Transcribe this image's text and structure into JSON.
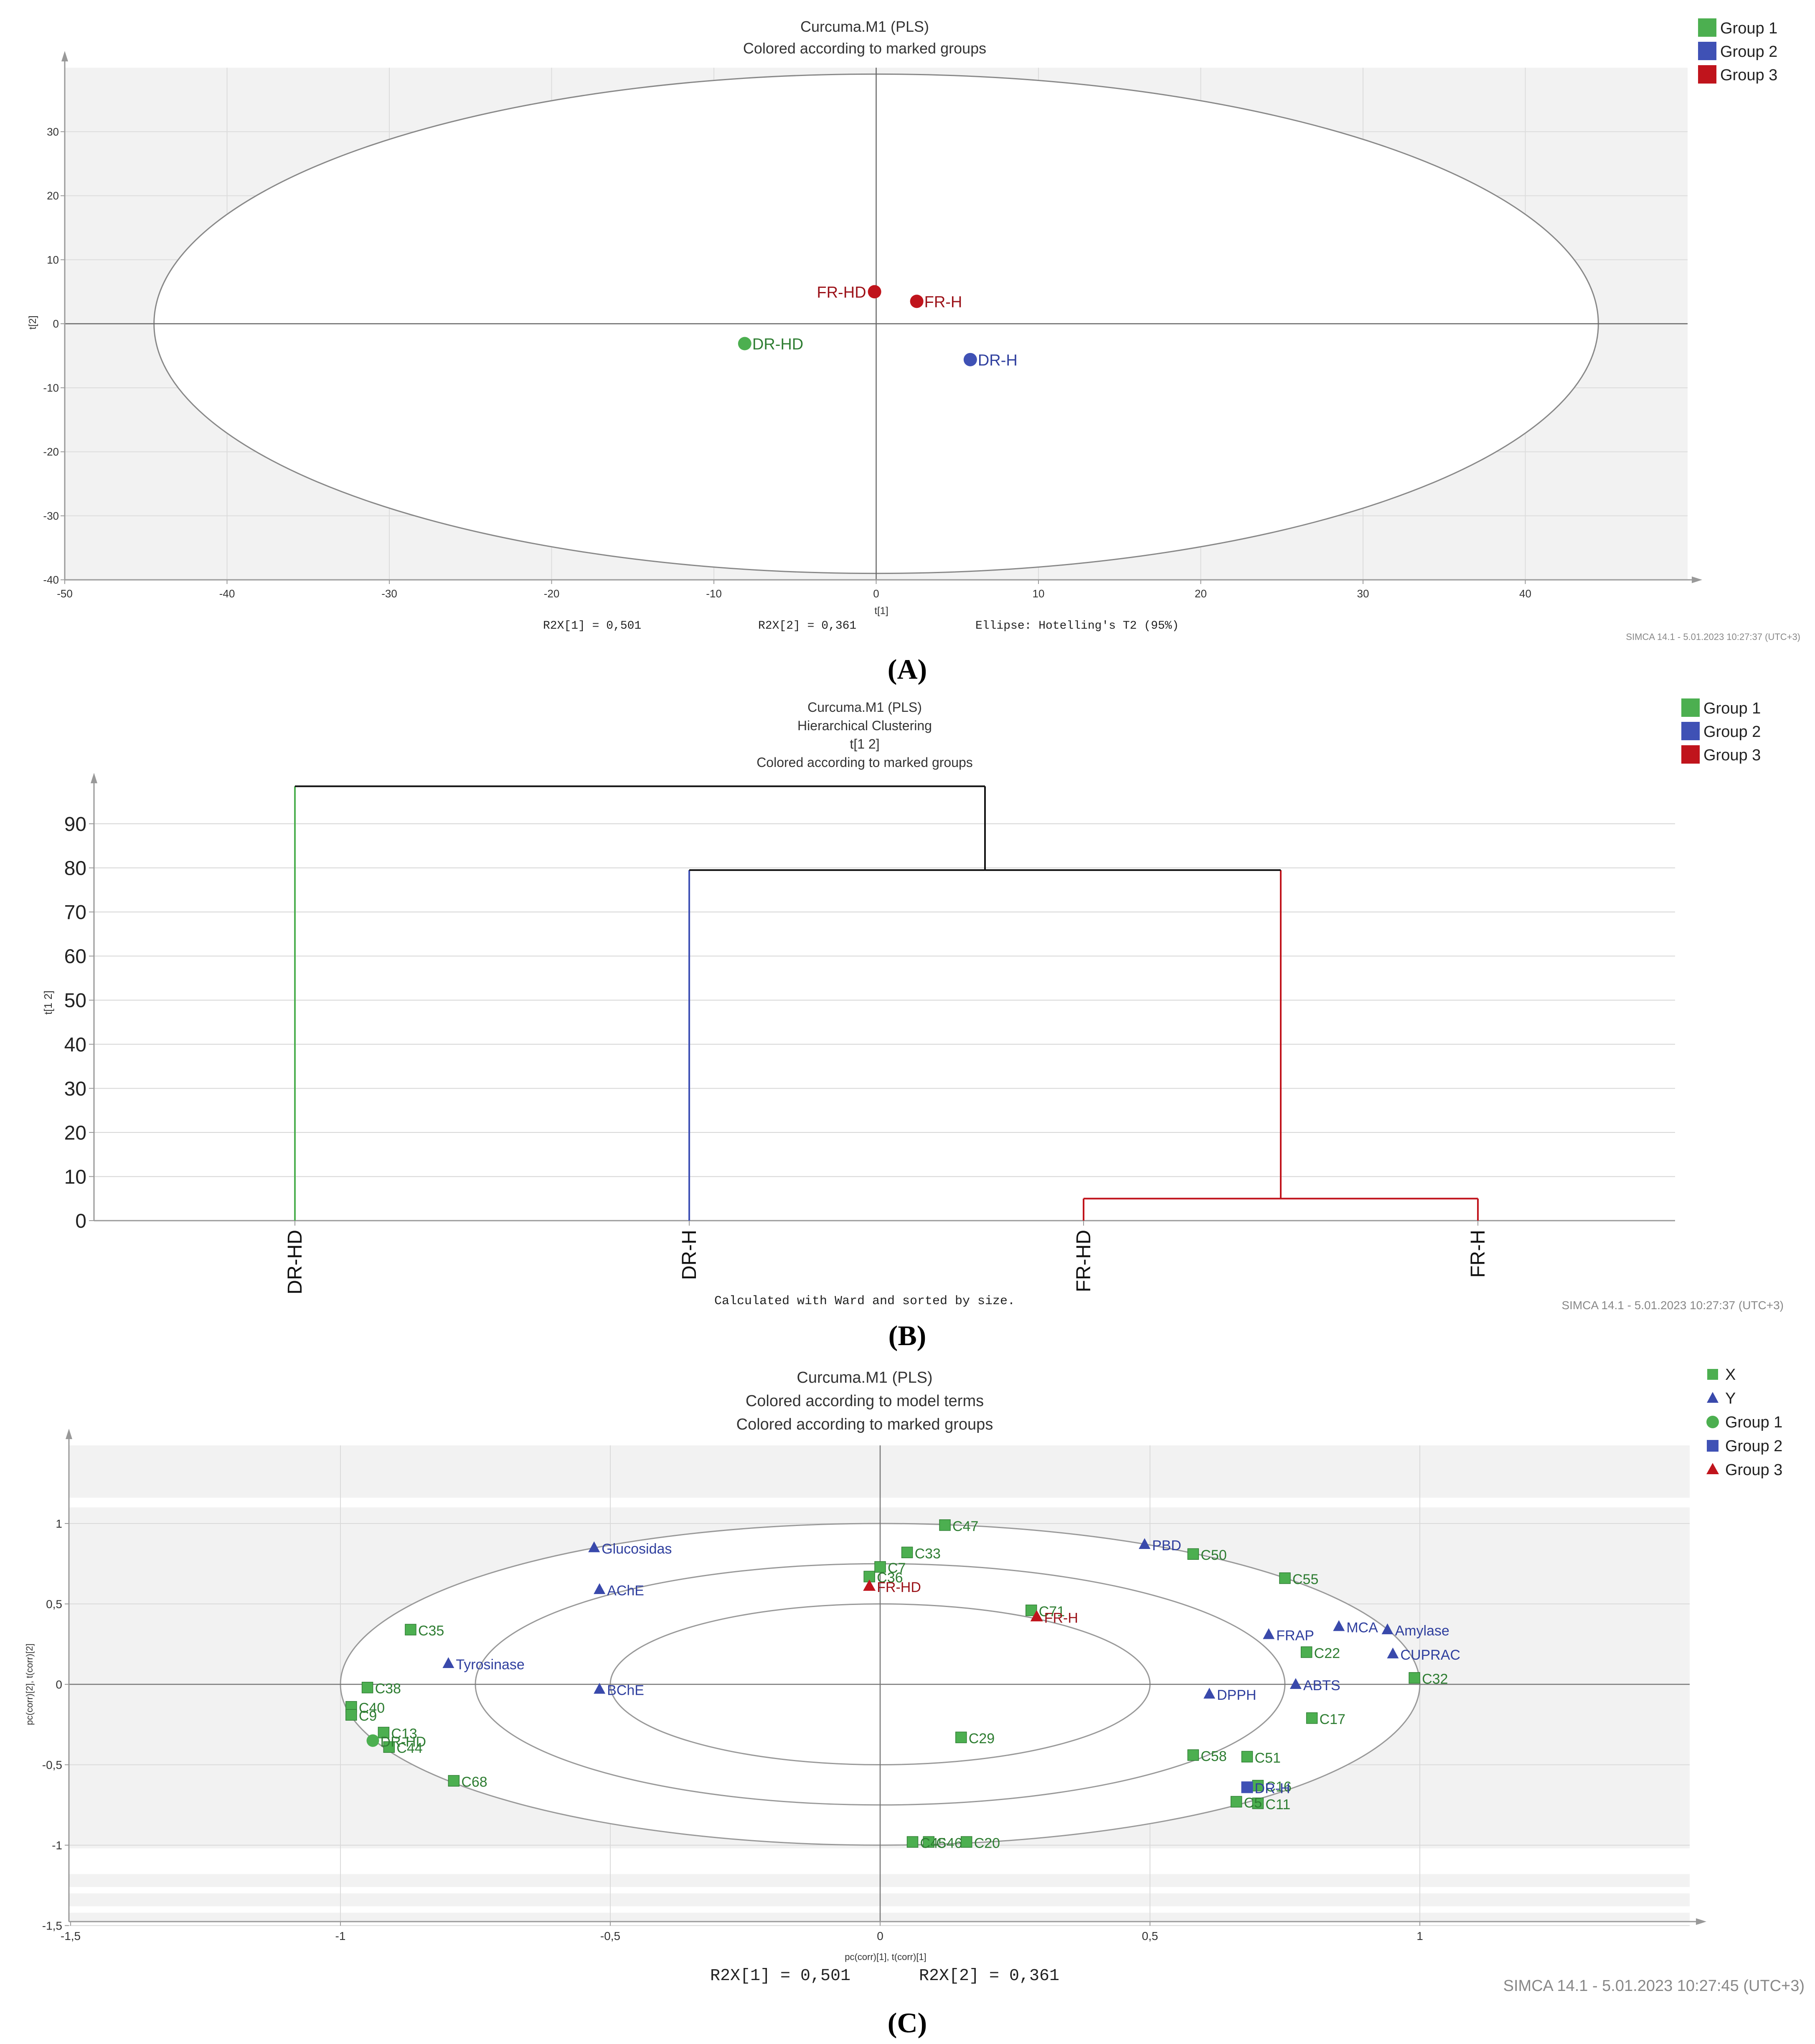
{
  "panel_labels": [
    "(A)",
    "(B)",
    "(C)"
  ],
  "colors": {
    "group1": "#4caf50",
    "group2": "#3f51b5",
    "group3": "#c0141c",
    "label_g1": "#2e7d32",
    "label_g2": "#2f3f9e",
    "label_g3": "#9b1118"
  },
  "chart_data": [
    {
      "type": "scatter",
      "title": "Curcuma.M1 (PLS)",
      "subtitle": "Colored according to marked groups",
      "xlabel": "t[1]",
      "ylabel": "t[2]",
      "xlim": [
        -50,
        50
      ],
      "ylim": [
        -40,
        40
      ],
      "xticks": [
        -50,
        -40,
        -30,
        -20,
        -10,
        0,
        10,
        20,
        30,
        40
      ],
      "yticks": [
        -40,
        -30,
        -20,
        -10,
        0,
        10,
        20,
        30
      ],
      "grid": true,
      "legend": {
        "position": "top-right",
        "entries": [
          "Group 1",
          "Group 2",
          "Group 3"
        ]
      },
      "ellipse": {
        "a": 44.5,
        "b": 39
      },
      "points": [
        {
          "label": "DR-HD",
          "x": -8.1,
          "y": -3.1,
          "group": 1
        },
        {
          "label": "DR-H",
          "x": 5.8,
          "y": -5.6,
          "group": 2
        },
        {
          "label": "FR-HD",
          "x": -0.1,
          "y": 5.0,
          "group": 3
        },
        {
          "label": "FR-H",
          "x": 2.5,
          "y": 3.5,
          "group": 3
        }
      ],
      "footer": [
        "R2X[1] = 0,501",
        "R2X[2] = 0,361",
        "Ellipse: Hotelling's T2 (95%)"
      ],
      "stamp": "SIMCA 14.1 - 5.01.2023 10:27:37 (UTC+3)"
    },
    {
      "type": "dendrogram",
      "title": "Curcuma.M1 (PLS)",
      "subtitle_lines": [
        "Hierarchical Clustering",
        "t[1 2]",
        "Colored according to marked groups"
      ],
      "ylabel": "t[1 2]",
      "ylim": [
        0,
        100
      ],
      "yticks": [
        0,
        10,
        20,
        30,
        40,
        50,
        60,
        70,
        80,
        90
      ],
      "leaves": [
        "DR-HD",
        "DR-H",
        "FR-HD",
        "FR-H"
      ],
      "merges": [
        {
          "left": "FR-HD",
          "right": "FR-H",
          "height": 5,
          "color": "group3"
        },
        {
          "left": "DR-H",
          "right": "FR-HD+FR-H",
          "height": 79.5,
          "color": "black"
        },
        {
          "left": "DR-HD",
          "right": "rest",
          "height": 98.5,
          "color": "black"
        }
      ],
      "legend": {
        "position": "top-right",
        "entries": [
          "Group 1",
          "Group 2",
          "Group 3"
        ]
      },
      "footer": "Calculated with Ward and sorted by size.",
      "stamp": "SIMCA 14.1 - 5.01.2023 10:27:37 (UTC+3)"
    },
    {
      "type": "scatter",
      "title": "Curcuma.M1 (PLS)",
      "subtitle_lines": [
        "Colored according to model terms",
        "Colored according to marked groups"
      ],
      "xlabel": "pc(corr)[1], t(corr)[1]",
      "ylabel": "pc(corr)[2], t(corr)[2]",
      "xlim": [
        -1.5,
        1.5
      ],
      "ylim": [
        -1.5,
        1.4
      ],
      "xticks": [
        "-1,5",
        "-1",
        "-0,5",
        "0",
        "0,5",
        "1"
      ],
      "yticks": [
        "-1,5",
        "-1",
        "-0,5",
        "0",
        "0,5",
        "1"
      ],
      "legend": {
        "position": "top-right",
        "entries": [
          "X",
          "Y",
          "Group 1",
          "Group 2",
          "Group 3"
        ]
      },
      "circles": [
        1.0,
        0.75,
        0.5
      ],
      "points": [
        {
          "label": "C47",
          "x": 0.12,
          "y": 0.99,
          "kind": "X"
        },
        {
          "label": "C33",
          "x": 0.05,
          "y": 0.82,
          "kind": "X"
        },
        {
          "label": "C7",
          "x": 0.0,
          "y": 0.73,
          "kind": "X"
        },
        {
          "label": "C36",
          "x": -0.02,
          "y": 0.67,
          "kind": "X"
        },
        {
          "label": "C50",
          "x": 0.58,
          "y": 0.81,
          "kind": "X"
        },
        {
          "label": "C55",
          "x": 0.75,
          "y": 0.66,
          "kind": "X"
        },
        {
          "label": "C71",
          "x": 0.28,
          "y": 0.46,
          "kind": "X"
        },
        {
          "label": "C35",
          "x": -0.87,
          "y": 0.34,
          "kind": "X"
        },
        {
          "label": "C22",
          "x": 0.79,
          "y": 0.2,
          "kind": "X"
        },
        {
          "label": "C32",
          "x": 0.99,
          "y": 0.04,
          "kind": "X"
        },
        {
          "label": "C17",
          "x": 0.8,
          "y": -0.21,
          "kind": "X"
        },
        {
          "label": "C38",
          "x": -0.95,
          "y": -0.02,
          "kind": "X"
        },
        {
          "label": "C40",
          "x": -0.98,
          "y": -0.14,
          "kind": "X"
        },
        {
          "label": "C9",
          "x": -0.98,
          "y": -0.19,
          "kind": "X"
        },
        {
          "label": "C13",
          "x": -0.92,
          "y": -0.3,
          "kind": "X"
        },
        {
          "label": "C44",
          "x": -0.91,
          "y": -0.39,
          "kind": "X"
        },
        {
          "label": "C68",
          "x": -0.79,
          "y": -0.6,
          "kind": "X"
        },
        {
          "label": "C29",
          "x": 0.15,
          "y": -0.33,
          "kind": "X"
        },
        {
          "label": "C58",
          "x": 0.58,
          "y": -0.44,
          "kind": "X"
        },
        {
          "label": "C51",
          "x": 0.68,
          "y": -0.45,
          "kind": "X"
        },
        {
          "label": "C16",
          "x": 0.7,
          "y": -0.63,
          "kind": "X"
        },
        {
          "label": "C11",
          "x": 0.7,
          "y": -0.74,
          "kind": "X"
        },
        {
          "label": "C5",
          "x": 0.66,
          "y": -0.73,
          "kind": "X"
        },
        {
          "label": "C46",
          "x": 0.09,
          "y": -0.98,
          "kind": "X"
        },
        {
          "label": "C45",
          "x": 0.06,
          "y": -0.98,
          "kind": "X"
        },
        {
          "label": "C20",
          "x": 0.16,
          "y": -0.98,
          "kind": "X"
        },
        {
          "label": "Glucosidas",
          "x": -0.53,
          "y": 0.85,
          "kind": "Y"
        },
        {
          "label": "AChE",
          "x": -0.52,
          "y": 0.59,
          "kind": "Y"
        },
        {
          "label": "Tyrosinase",
          "x": -0.8,
          "y": 0.13,
          "kind": "Y"
        },
        {
          "label": "BChE",
          "x": -0.52,
          "y": -0.03,
          "kind": "Y"
        },
        {
          "label": "PBD",
          "x": 0.49,
          "y": 0.87,
          "kind": "Y"
        },
        {
          "label": "FRAP",
          "x": 0.72,
          "y": 0.31,
          "kind": "Y"
        },
        {
          "label": "MCA",
          "x": 0.85,
          "y": 0.36,
          "kind": "Y"
        },
        {
          "label": "Amylase",
          "x": 0.94,
          "y": 0.34,
          "kind": "Y"
        },
        {
          "label": "CUPRAC",
          "x": 0.95,
          "y": 0.19,
          "kind": "Y"
        },
        {
          "label": "ABTS",
          "x": 0.77,
          "y": 0.0,
          "kind": "Y"
        },
        {
          "label": "DPPH",
          "x": 0.61,
          "y": -0.06,
          "kind": "Y"
        },
        {
          "label": "DR-HD",
          "x": -0.94,
          "y": -0.35,
          "kind": "Group 1"
        },
        {
          "label": "DR-H",
          "x": 0.68,
          "y": -0.64,
          "kind": "Group 2"
        },
        {
          "label": "FR-HD",
          "x": -0.02,
          "y": 0.61,
          "kind": "Group 3"
        },
        {
          "label": "FR-H",
          "x": 0.29,
          "y": 0.42,
          "kind": "Group 3"
        }
      ],
      "footer": [
        "R2X[1] = 0,501",
        "R2X[2] = 0,361"
      ],
      "stamp": "SIMCA 14.1 - 5.01.2023 10:27:45 (UTC+3)"
    }
  ]
}
